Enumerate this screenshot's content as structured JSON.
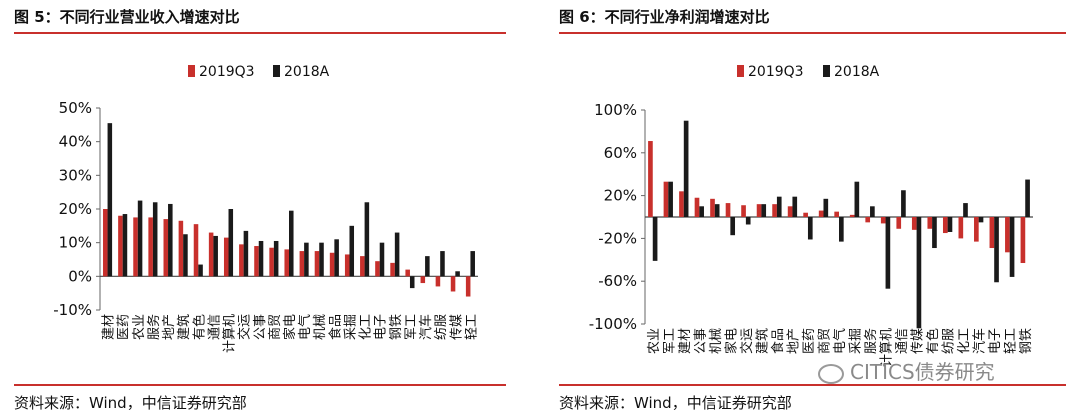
{
  "charts": [
    {
      "title": "图 5：不同行业营业收入增速对比",
      "source": "资料来源：Wind，中信证券研究部"
    },
    {
      "title": "图 6：不同行业净利润增速对比",
      "source": "资料来源：Wind，中信证券研究部"
    }
  ],
  "watermark": "CITICS债券研究",
  "colors": {
    "series1": "#c8302c",
    "series2": "#1a1a1a",
    "rule": "#c8302c"
  },
  "chart_data": [
    {
      "type": "bar",
      "title": "图 5：不同行业营业收入增速对比",
      "categories": [
        "建材",
        "医药",
        "农业",
        "服务",
        "地产",
        "建筑",
        "有色",
        "通信",
        "计算机",
        "交运",
        "公事",
        "商贸",
        "家电",
        "电气",
        "机械",
        "食品",
        "采掘",
        "化工",
        "电子",
        "钢铁",
        "军工",
        "汽车",
        "纺服",
        "传媒",
        "轻工"
      ],
      "series": [
        {
          "name": "2019Q3",
          "values": [
            20,
            18,
            17.5,
            17.5,
            17,
            16.5,
            15.5,
            13,
            11.5,
            9.5,
            9,
            8.5,
            8,
            7.5,
            7.5,
            7,
            6.5,
            6,
            4.5,
            4,
            2,
            -2,
            -3,
            -4.5,
            -6
          ]
        },
        {
          "name": "2018A",
          "values": [
            45.5,
            18.5,
            22.5,
            22,
            21.5,
            12.5,
            3.5,
            12,
            20,
            13.5,
            10.5,
            10.5,
            19.5,
            10,
            10,
            11,
            15,
            22,
            10,
            13,
            -3.5,
            6,
            7.5,
            1.5,
            7.5
          ]
        }
      ],
      "ylim": [
        -10,
        50
      ],
      "yticks": [
        "-10%",
        "0%",
        "10%",
        "20%",
        "30%",
        "40%",
        "50%"
      ],
      "ytick_values": [
        -10,
        0,
        10,
        20,
        30,
        40,
        50
      ],
      "legend": "top-center",
      "grid": false
    },
    {
      "type": "bar",
      "title": "图 6：不同行业净利润增速对比",
      "categories": [
        "农业",
        "军工",
        "建材",
        "公事",
        "机械",
        "家电",
        "交运",
        "建筑",
        "食品",
        "地产",
        "医药",
        "商贸",
        "电气",
        "采掘",
        "服务",
        "计算机",
        "通信",
        "传媒",
        "有色",
        "纺服",
        "化工",
        "汽车",
        "电子",
        "轻工",
        "钢铁"
      ],
      "series": [
        {
          "name": "2019Q3",
          "values": [
            71,
            33,
            24,
            18,
            17,
            13,
            11,
            12,
            12,
            10,
            4,
            6,
            5,
            2,
            -5,
            -6,
            -11,
            -12,
            -11,
            -15,
            -20,
            -23,
            -29,
            -33,
            -43
          ]
        },
        {
          "name": "2018A",
          "values": [
            -41,
            33,
            90,
            10,
            12,
            -17,
            -7,
            12,
            19,
            19,
            -21,
            17,
            -23,
            33,
            10,
            -67,
            25,
            -104,
            -29,
            -14,
            13,
            -5,
            -61,
            -56,
            35
          ]
        }
      ],
      "ylim": [
        -100,
        100
      ],
      "yticks": [
        "-100%",
        "-60%",
        "-20%",
        "20%",
        "60%",
        "100%"
      ],
      "ytick_values": [
        -100,
        -60,
        -20,
        20,
        60,
        100
      ],
      "legend": "top-center",
      "grid": false
    }
  ]
}
